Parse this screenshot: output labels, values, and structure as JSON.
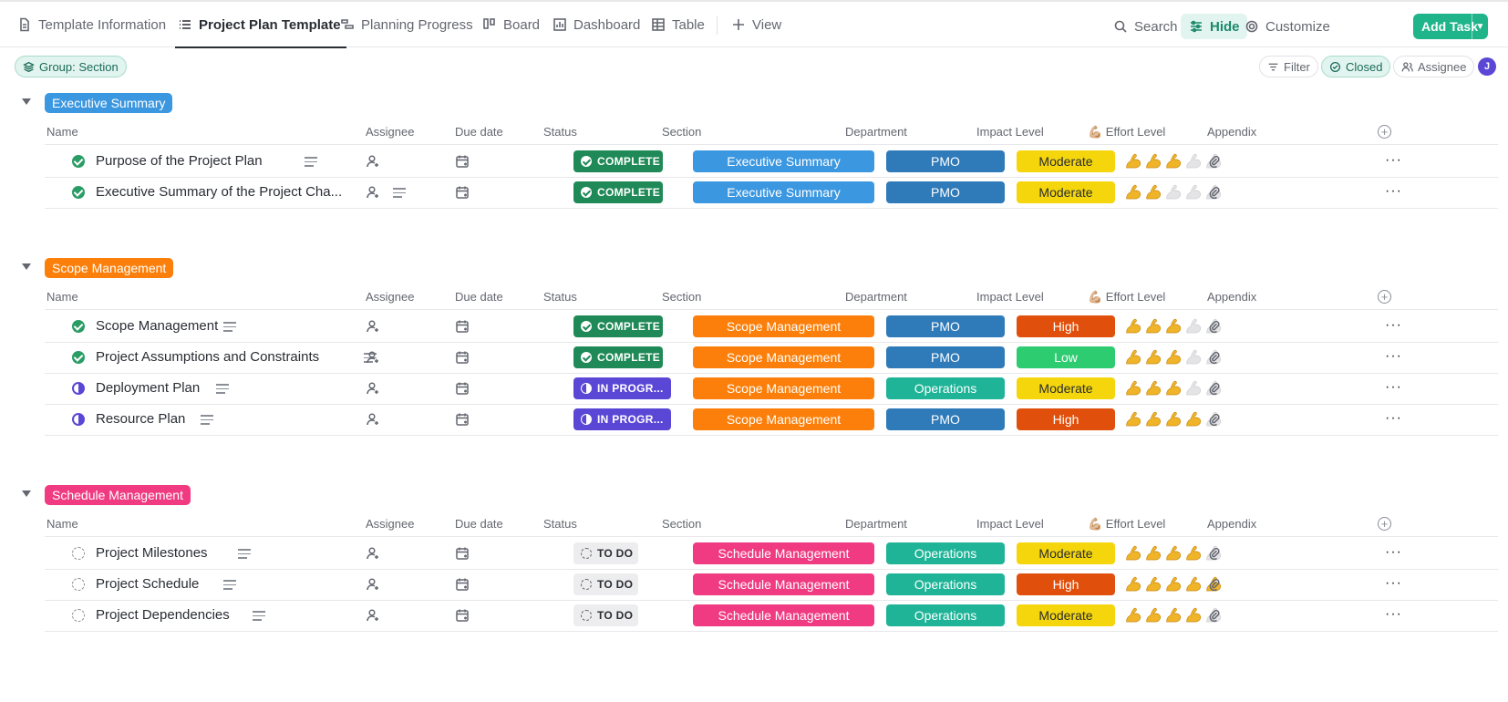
{
  "tabs": [
    {
      "label": "Template Information",
      "icon": "document-icon",
      "active": false
    },
    {
      "label": "Project Plan Template",
      "icon": "list-icon",
      "active": true
    },
    {
      "label": "Planning Progress",
      "icon": "gantt-icon",
      "active": false
    },
    {
      "label": "Board",
      "icon": "board-icon",
      "active": false
    },
    {
      "label": "Dashboard",
      "icon": "dashboard-icon",
      "active": false
    },
    {
      "label": "Table",
      "icon": "table-icon",
      "active": false
    },
    {
      "label": "View",
      "icon": "plus-icon",
      "active": false
    }
  ],
  "toolbar": {
    "search": "Search",
    "hide": "Hide",
    "customize": "Customize",
    "add_task": "Add Task"
  },
  "filters": {
    "group": "Group: Section",
    "filter": "Filter",
    "closed": "Closed",
    "assignee": "Assignee",
    "avatar": "J"
  },
  "columns": {
    "name": "Name",
    "assignee": "Assignee",
    "due_date": "Due date",
    "status": "Status",
    "section": "Section",
    "department": "Department",
    "impact": "Impact Level",
    "effort": "💪🏼 Effort Level",
    "appendix": "Appendix"
  },
  "colors": {
    "complete": "#1f8a57",
    "in_progress": "#5b47d6",
    "todo": "#ededef",
    "pmo": "#2f7ab8",
    "operations": "#1fb497",
    "moderate": "#f5d60c",
    "high": "#e0500c",
    "low": "#2ecc71"
  },
  "groups": [
    {
      "name": "Executive Summary",
      "color": "#3b97e0",
      "tasks": [
        {
          "name": "Purpose of the Project Plan",
          "status": "COMPLETE",
          "status_kind": "complete",
          "section": "Executive Summary",
          "department": "PMO",
          "impact": "Moderate",
          "effort": 3
        },
        {
          "name": "Executive Summary of the Project Cha...",
          "status": "COMPLETE",
          "status_kind": "complete",
          "section": "Executive Summary",
          "department": "PMO",
          "impact": "Moderate",
          "effort": 2
        }
      ]
    },
    {
      "name": "Scope Management",
      "color": "#fb7f0a",
      "tasks": [
        {
          "name": "Scope Management",
          "status": "COMPLETE",
          "status_kind": "complete",
          "section": "Scope Management",
          "department": "PMO",
          "impact": "High",
          "effort": 3
        },
        {
          "name": "Project Assumptions and Constraints",
          "status": "COMPLETE",
          "status_kind": "complete",
          "section": "Scope Management",
          "department": "PMO",
          "impact": "Low",
          "effort": 3
        },
        {
          "name": "Deployment Plan",
          "status": "IN PROGR...",
          "status_kind": "inprog",
          "section": "Scope Management",
          "department": "Operations",
          "impact": "Moderate",
          "effort": 3
        },
        {
          "name": "Resource Plan",
          "status": "IN PROGR...",
          "status_kind": "inprog",
          "section": "Scope Management",
          "department": "PMO",
          "impact": "High",
          "effort": 4
        }
      ]
    },
    {
      "name": "Schedule Management",
      "color": "#f03a81",
      "tasks": [
        {
          "name": "Project Milestones",
          "status": "TO DO",
          "status_kind": "todo",
          "section": "Schedule Management",
          "department": "Operations",
          "impact": "Moderate",
          "effort": 4
        },
        {
          "name": "Project Schedule",
          "status": "TO DO",
          "status_kind": "todo",
          "section": "Schedule Management",
          "department": "Operations",
          "impact": "High",
          "effort": 5
        },
        {
          "name": "Project Dependencies",
          "status": "TO DO",
          "status_kind": "todo",
          "section": "Schedule Management",
          "department": "Operations",
          "impact": "Moderate",
          "effort": 4
        }
      ]
    }
  ]
}
